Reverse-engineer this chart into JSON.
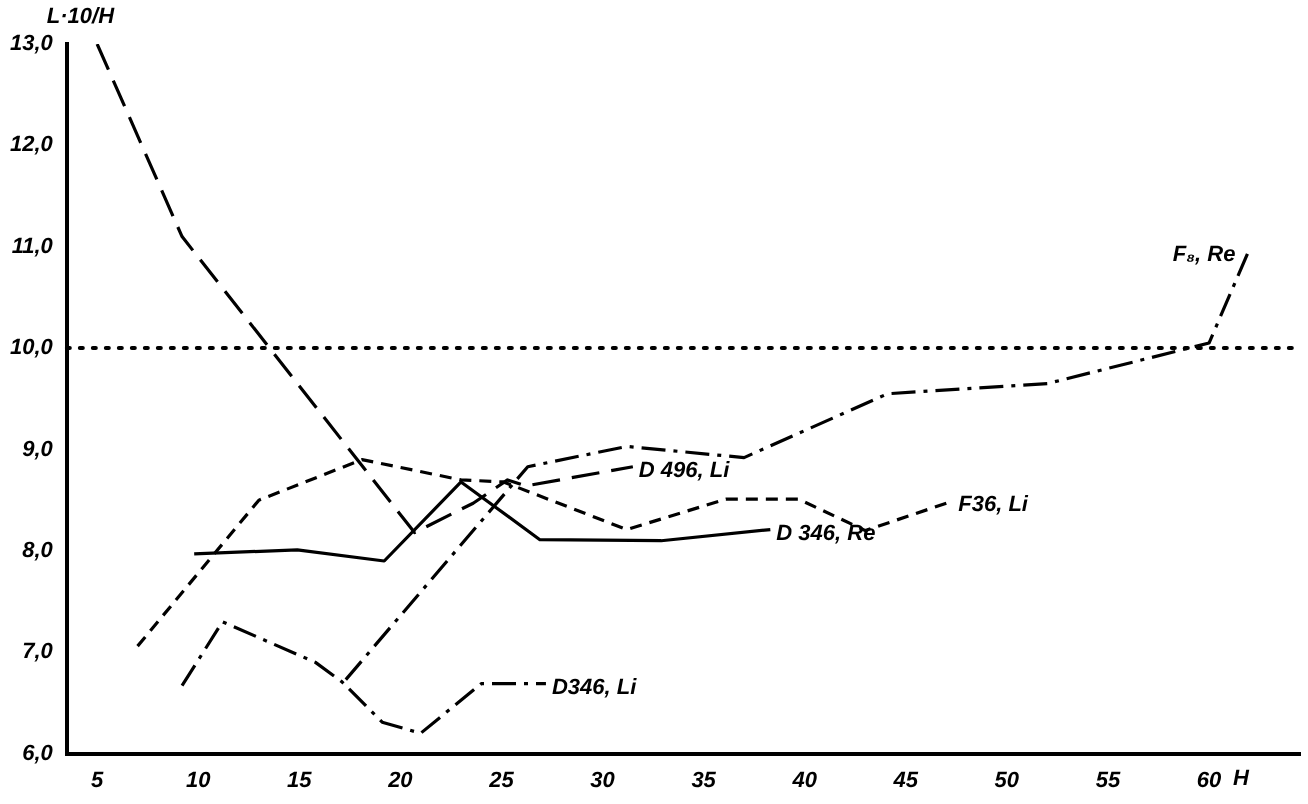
{
  "chart_data": {
    "type": "line",
    "ylabel": "L·10/H",
    "xlabel": "H",
    "xlim": [
      3.5,
      64.5
    ],
    "ylim": [
      6,
      13
    ],
    "xticks": [
      5,
      10,
      15,
      20,
      25,
      30,
      35,
      40,
      45,
      50,
      55,
      60
    ],
    "yticks": [
      {
        "value": 6,
        "label": "6,0"
      },
      {
        "value": 7,
        "label": "7,0"
      },
      {
        "value": 8,
        "label": "8,0"
      },
      {
        "value": 9,
        "label": "9,0"
      },
      {
        "value": 10,
        "label": "10,0"
      },
      {
        "value": 11,
        "label": "11,0"
      },
      {
        "value": 12,
        "label": "12,0"
      },
      {
        "value": 13,
        "label": "13,0"
      }
    ],
    "grid": false,
    "legend": false,
    "marker": "none",
    "ref_lines": [
      {
        "axis": "y",
        "value": 10,
        "color": "#000000",
        "line_style": "dotted"
      }
    ],
    "series": [
      {
        "name": "D 496, Li",
        "color": "#000000",
        "line_style": "longdash",
        "x": [
          5,
          9.2,
          20.7,
          23.6,
          25.3,
          26.2,
          31.5
        ],
        "values": [
          13.0,
          11.1,
          8.18,
          8.47,
          8.7,
          8.64,
          8.83
        ]
      },
      {
        "name": "F36, Li",
        "color": "#000000",
        "line_style": "dashed",
        "x": [
          7,
          13,
          18.1,
          23,
          25.1,
          31.2,
          36.1,
          39.7,
          43,
          47.3
        ],
        "values": [
          7.06,
          8.5,
          8.9,
          8.7,
          8.68,
          8.21,
          8.51,
          8.51,
          8.2,
          8.49
        ]
      },
      {
        "name": "D 346, Re",
        "color": "#000000",
        "line_style": "solid",
        "x": [
          9.8,
          14.9,
          19.2,
          23,
          26.9,
          32.9,
          38.3
        ],
        "values": [
          7.97,
          8.01,
          7.9,
          8.68,
          8.11,
          8.1,
          8.21
        ]
      },
      {
        "name": "F₈, Re",
        "color": "#000000",
        "line_style": "dashdot",
        "x": [
          17.3,
          26.3,
          31.2,
          37,
          44.1,
          52,
          60,
          61.9
        ],
        "values": [
          6.73,
          8.83,
          9.03,
          8.92,
          9.55,
          9.65,
          10.05,
          10.93
        ]
      },
      {
        "name": "D346, Li",
        "color": "#000000",
        "line_style": "dashdot",
        "x": [
          9.2,
          11.2,
          15.8,
          17.1,
          19.1,
          21,
          24,
          27.2
        ],
        "values": [
          6.67,
          7.3,
          6.9,
          6.71,
          6.31,
          6.2,
          6.69,
          6.69
        ]
      }
    ]
  }
}
